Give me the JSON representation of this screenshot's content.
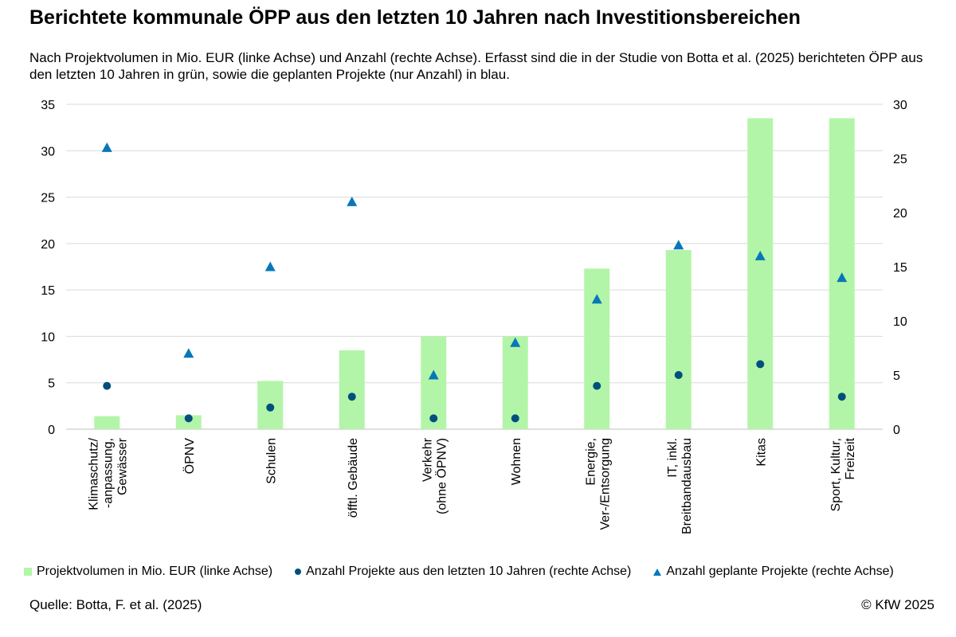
{
  "chart_data": {
    "type": "bar",
    "title": "Berichtete kommunale ÖPP aus den letzten 10 Jahren nach Investitionsbereichen",
    "subtitle": "Nach Projektvolumen in Mio. EUR (linke Achse) und Anzahl (rechte Achse). Erfasst sind die in der Studie von Botta et al. (2025) berichteten ÖPP aus den letzten 10 Jahren in grün, sowie die geplanten Projekte (nur Anzahl) in blau.",
    "categories": [
      "Klimaschutz/ -anpassung, Gewässer",
      "ÖPNV",
      "Schulen",
      "öfftl. Gebäude",
      "Verkehr (ohne ÖPNV)",
      "Wohnen",
      "Energie, Ver-/Entsorgung",
      "IT, inkl. Breitbandausbau",
      "Kitas",
      "Sport, Kultur, Freizeit"
    ],
    "category_lines": [
      [
        "Klimaschutz/",
        "-anpassung,",
        "Gewässer"
      ],
      [
        "ÖPNV"
      ],
      [
        "Schulen"
      ],
      [
        "öfftl. Gebäude"
      ],
      [
        "Verkehr",
        "(ohne ÖPNV)"
      ],
      [
        "Wohnen"
      ],
      [
        "Energie,",
        "Ver-/Entsorgung"
      ],
      [
        "IT, inkl.",
        "Breitbandausbau"
      ],
      [
        "Kitas"
      ],
      [
        "Sport, Kultur,",
        "Freizeit"
      ]
    ],
    "series": [
      {
        "name": "Projektvolumen in Mio. EUR (linke Achse)",
        "axis": "left",
        "kind": "bar",
        "color": "#b3f5a8",
        "values": [
          1.4,
          1.5,
          5.2,
          8.5,
          10.0,
          10.0,
          17.3,
          19.3,
          33.5,
          33.5
        ]
      },
      {
        "name": "Anzahl Projekte aus den letzten 10 Jahren (rechte Achse)",
        "axis": "right",
        "kind": "dot",
        "color": "#004f7c",
        "values": [
          4,
          1,
          2,
          3,
          1,
          1,
          4,
          5,
          6,
          3
        ]
      },
      {
        "name": "Anzahl geplante Projekte (rechte Achse)",
        "axis": "right",
        "kind": "triangle",
        "color": "#0877b8",
        "values": [
          26,
          7,
          15,
          21,
          5,
          8,
          12,
          17,
          16,
          14
        ]
      }
    ],
    "y_left": {
      "min": 0,
      "max": 35,
      "step": 5
    },
    "y_right": {
      "min": 0,
      "max": 30,
      "step": 5
    },
    "grid": true,
    "legend_position": "bottom"
  },
  "source": "Quelle: Botta, F. et al. (2025)",
  "copyright": "© KfW 2025"
}
